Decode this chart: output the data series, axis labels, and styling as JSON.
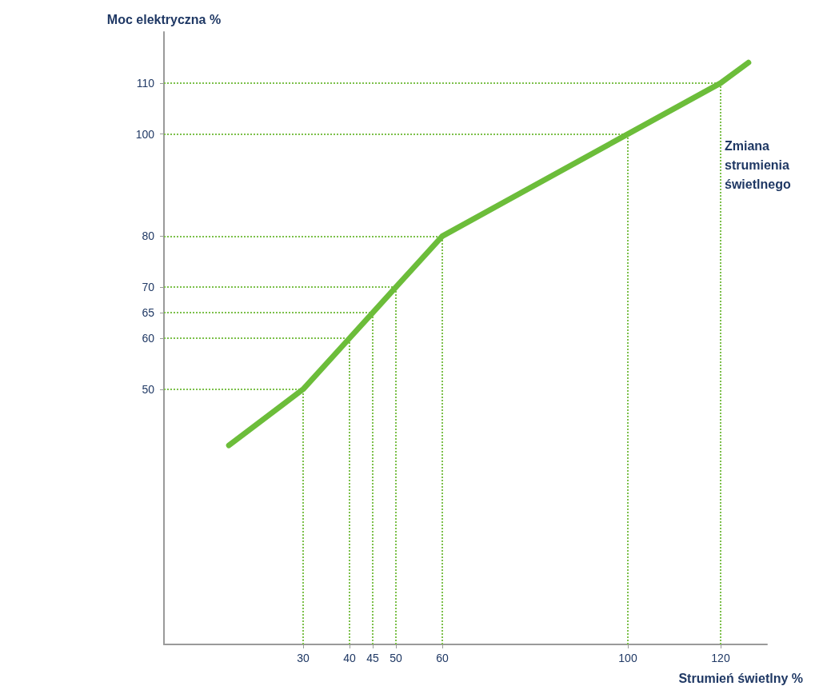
{
  "chart_data": {
    "type": "line",
    "xlabel": "Strumień świetlny %",
    "ylabel": "Moc elektryczna %",
    "annotations": [
      "Zmiana strumienia świetlnego"
    ],
    "series": [
      {
        "color": "#6cbd3a",
        "x": [
          14,
          30,
          40,
          45,
          50,
          60,
          100,
          120,
          126
        ],
        "values": [
          39,
          50,
          60,
          65,
          70,
          80,
          100,
          110,
          114
        ]
      }
    ],
    "xlim": [
      0,
      130
    ],
    "ylim": [
      0,
      120
    ],
    "xticks": [
      30,
      40,
      45,
      50,
      60,
      100,
      120
    ],
    "yticks": [
      50,
      60,
      65,
      70,
      80,
      100,
      110
    ],
    "marker": "none",
    "line_style": "solid",
    "grid": false,
    "ref_lines": [
      {
        "axis": "x",
        "value": 30,
        "color": "#7cc04a",
        "line_style": "dotted"
      },
      {
        "axis": "x",
        "value": 40,
        "color": "#7cc04a",
        "line_style": "dotted"
      },
      {
        "axis": "x",
        "value": 45,
        "color": "#7cc04a",
        "line_style": "dotted"
      },
      {
        "axis": "x",
        "value": 50,
        "color": "#7cc04a",
        "line_style": "dotted"
      },
      {
        "axis": "x",
        "value": 60,
        "color": "#7cc04a",
        "line_style": "dotted"
      },
      {
        "axis": "x",
        "value": 100,
        "color": "#7cc04a",
        "line_style": "dotted"
      },
      {
        "axis": "x",
        "value": 120,
        "color": "#7cc04a",
        "line_style": "dotted"
      },
      {
        "axis": "y",
        "value": 50,
        "color": "#7cc04a",
        "line_style": "dotted"
      },
      {
        "axis": "y",
        "value": 60,
        "color": "#7cc04a",
        "line_style": "dotted"
      },
      {
        "axis": "y",
        "value": 65,
        "color": "#7cc04a",
        "line_style": "dotted"
      },
      {
        "axis": "y",
        "value": 70,
        "color": "#7cc04a",
        "line_style": "dotted"
      },
      {
        "axis": "y",
        "value": 80,
        "color": "#7cc04a",
        "line_style": "dotted"
      },
      {
        "axis": "y",
        "value": 100,
        "color": "#7cc04a",
        "line_style": "dotted"
      },
      {
        "axis": "y",
        "value": 110,
        "color": "#7cc04a",
        "line_style": "dotted"
      }
    ]
  }
}
